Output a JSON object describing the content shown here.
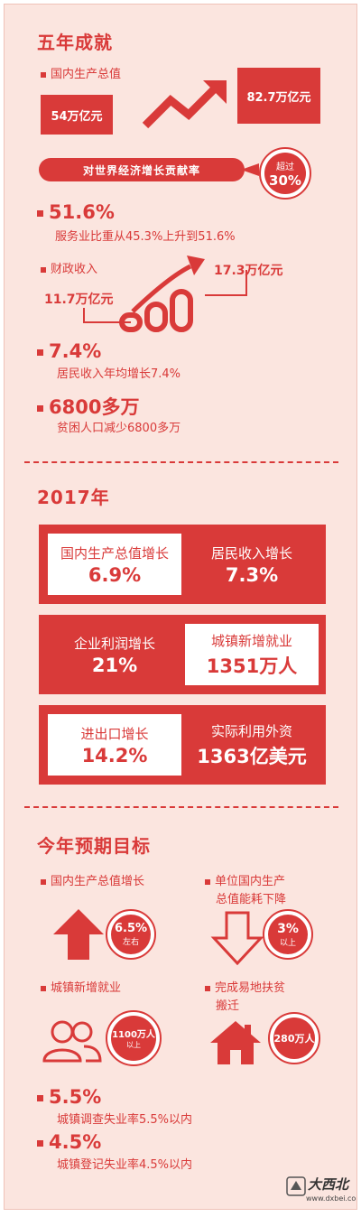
{
  "colors": {
    "accent": "#d93a39",
    "background": "#fbe5df"
  },
  "five_year": {
    "title": "五年成就",
    "gdp": {
      "label": "国内生产总值",
      "from": "54万亿元",
      "to": "82.7万亿元"
    },
    "contribution": {
      "label": "对世界经济增长贡献率",
      "prefix": "超过",
      "value": "30%"
    },
    "service": {
      "value": "51.6%",
      "desc": "服务业比重从45.3%上升到51.6%"
    },
    "fiscal": {
      "label": "财政收入",
      "from": "11.7万亿元",
      "to": "17.3万亿元"
    },
    "income": {
      "value": "7.4%",
      "desc": "居民收入年均增长7.4%"
    },
    "poverty": {
      "value": "6800多万",
      "desc": "贫困人口减少6800多万"
    }
  },
  "y2017": {
    "title": "2017年",
    "rows": [
      {
        "left": {
          "label": "国内生产总值增长",
          "value": "6.9%"
        },
        "right": {
          "label": "居民收入增长",
          "value": "7.3%"
        }
      },
      {
        "left": {
          "label": "企业利润增长",
          "value": "21%"
        },
        "right": {
          "label": "城镇新增就业",
          "value": "1351万人"
        }
      },
      {
        "left": {
          "label": "进出口增长",
          "value": "14.2%"
        },
        "right": {
          "label": "实际利用外资",
          "value": "1363亿美元"
        }
      }
    ]
  },
  "targets": {
    "title": "今年预期目标",
    "gdp": {
      "label": "国内生产总值增长",
      "value": "6.5%",
      "note": "左右",
      "icon": "up-arrow-icon"
    },
    "energy": {
      "label_line1": "单位国内生产",
      "label_line2": "总值能耗下降",
      "value": "3%",
      "note": "以上",
      "icon": "down-arrow-icon"
    },
    "jobs": {
      "label": "城镇新增就业",
      "value": "1100万人",
      "note": "以上",
      "icon": "people-icon"
    },
    "relocation": {
      "label_line1": "完成易地扶贫",
      "label_line2": "搬迁",
      "value": "280万人",
      "icon": "house-icon"
    },
    "survey_unemp": {
      "value": "5.5%",
      "desc": "城镇调查失业率5.5%以内"
    },
    "reg_unemp": {
      "value": "4.5%",
      "desc": "城镇登记失业率4.5%以内"
    }
  },
  "watermark": {
    "site": "大西北",
    "url": "www.dxbei.com"
  }
}
